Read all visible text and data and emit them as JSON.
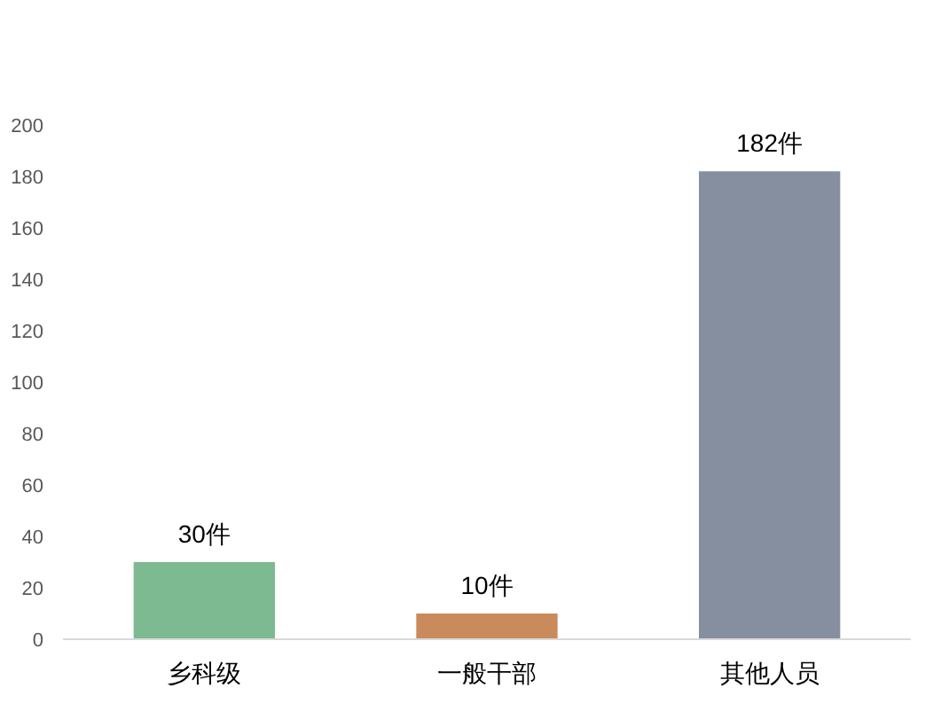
{
  "chart_data": {
    "type": "bar",
    "categories": [
      "乡科级",
      "一般干部",
      "其他人员"
    ],
    "values": [
      30,
      10,
      182
    ],
    "colors": [
      "#7dba92",
      "#c98b5b",
      "#858f9f"
    ],
    "value_labels": [
      "30件",
      "10件",
      "182件"
    ],
    "ylim": [
      0,
      200
    ],
    "yticks": [
      0,
      20,
      40,
      60,
      80,
      100,
      120,
      140,
      160,
      180,
      200
    ],
    "grid": false
  }
}
